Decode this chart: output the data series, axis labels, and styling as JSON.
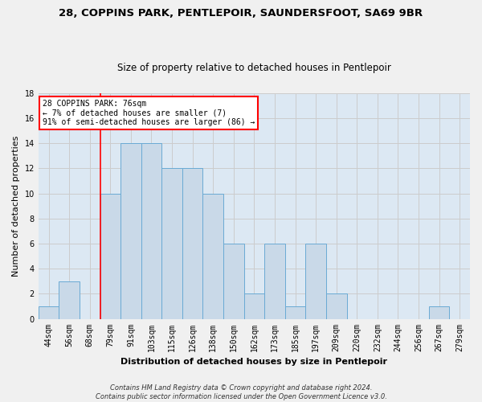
{
  "title1": "28, COPPINS PARK, PENTLEPOIR, SAUNDERSFOOT, SA69 9BR",
  "title2": "Size of property relative to detached houses in Pentlepoir",
  "xlabel": "Distribution of detached houses by size in Pentlepoir",
  "ylabel": "Number of detached properties",
  "footnote": "Contains HM Land Registry data © Crown copyright and database right 2024.\nContains public sector information licensed under the Open Government Licence v3.0.",
  "bar_labels": [
    "44sqm",
    "56sqm",
    "68sqm",
    "79sqm",
    "91sqm",
    "103sqm",
    "115sqm",
    "126sqm",
    "138sqm",
    "150sqm",
    "162sqm",
    "173sqm",
    "185sqm",
    "197sqm",
    "209sqm",
    "220sqm",
    "232sqm",
    "244sqm",
    "256sqm",
    "267sqm",
    "279sqm"
  ],
  "bar_values": [
    1,
    3,
    0,
    10,
    14,
    14,
    12,
    12,
    10,
    6,
    2,
    6,
    1,
    6,
    2,
    0,
    0,
    0,
    0,
    1,
    0
  ],
  "bar_color": "#c9d9e8",
  "bar_edge_color": "#6aaad4",
  "vline_x_index": 3,
  "vline_color": "red",
  "annotation_title": "28 COPPINS PARK: 76sqm",
  "annotation_line1": "← 7% of detached houses are smaller (7)",
  "annotation_line2": "91% of semi-detached houses are larger (86) →",
  "ylim": [
    0,
    18
  ],
  "yticks": [
    0,
    2,
    4,
    6,
    8,
    10,
    12,
    14,
    16,
    18
  ],
  "grid_color": "#cccccc",
  "bg_color": "#dce8f3",
  "fig_bg_color": "#f0f0f0",
  "title1_fontsize": 9.5,
  "title2_fontsize": 8.5,
  "ylabel_fontsize": 8,
  "xlabel_fontsize": 8,
  "tick_fontsize": 7,
  "annot_fontsize": 7,
  "footnote_fontsize": 6
}
